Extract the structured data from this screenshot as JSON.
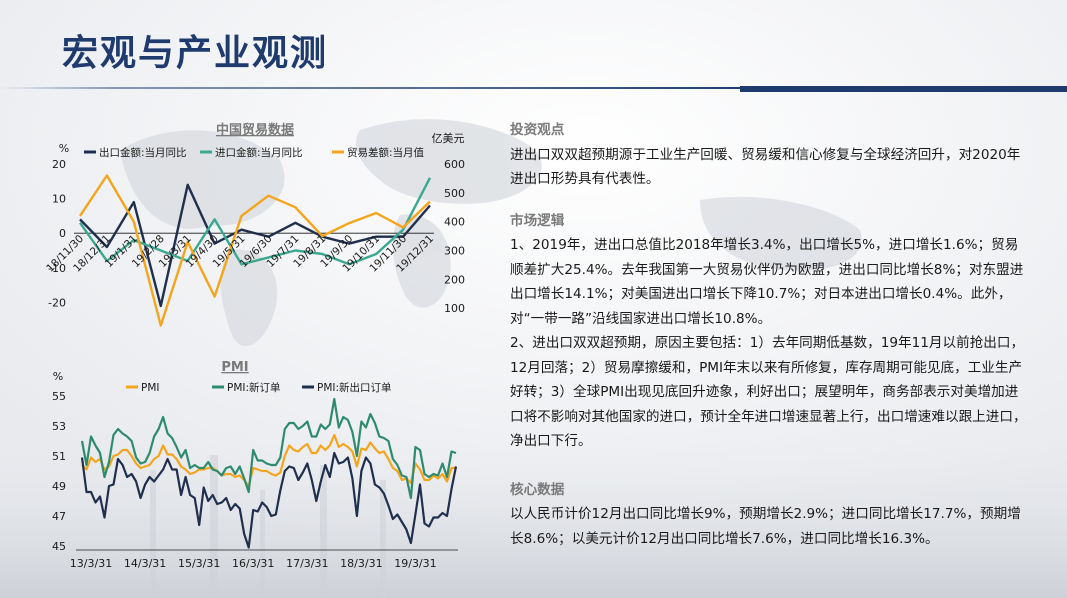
{
  "page": {
    "title": "宏观与产业观测"
  },
  "colors": {
    "title": "#1f3b6e",
    "navy": "#1f2f4d",
    "teal": "#3aa98f",
    "orange": "#f4a51c",
    "pmi_green": "#2e8b6e"
  },
  "text": {
    "invest_head": "投资观点",
    "invest_body": "进出口双双超预期源于工业生产回暖、贸易缓和信心修复与全球经济回升，对2020年进出口形势具有代表性。",
    "logic_head": "市场逻辑",
    "logic_p1": "1、2019年，进出口总值比2018年增长3.4%，出口增长5%，进口增长1.6%；贸易顺差扩大25.4%。去年我国第一大贸易伙伴仍为欧盟，进出口同比增长8%；对东盟进出口增长14.1%；对美国进出口增长下降10.7%；对日本进出口增长0.4%。此外，对“一带一路”沿线国家进出口增长10.8%。",
    "logic_p2": "2、进出口双双超预期，原因主要包括：1）去年同期低基数，19年11月以前抢出口，12月回落；2）贸易摩擦缓和，PMI年末以来有所修复，库存周期可能见底，工业生产好转；3）全球PMI出现见底回升迹象，利好出口；展望明年，商务部表示对美增加进口将不影响对其他国家的进口，预计全年进口增速显著上行，出口增速难以跟上进口，净出口下行。",
    "core_head": "核心数据",
    "core_body": "以人民币计价12月出口同比增长9%，预期增长2.9%；进口同比增长17.7%，预期增长8.6%；以美元计价12月出口同比增长7.6%，进口同比增长16.3%。"
  },
  "chart_data": [
    {
      "type": "line",
      "title": "中国贸易数据",
      "ylabel": "%",
      "ylabel_right": "亿美元",
      "ylim": [
        -30,
        20
      ],
      "ylim_right": [
        0,
        600
      ],
      "yticks": [
        20,
        10,
        0,
        -10,
        -20,
        -30
      ],
      "yticks_right": [
        600,
        500,
        400,
        300,
        200,
        100,
        0
      ],
      "x": [
        "18/11/30",
        "18/12/31",
        "19/1/31",
        "19/2/28",
        "19/3/31",
        "19/4/30",
        "19/5/31",
        "19/6/30",
        "19/7/31",
        "19/8/31",
        "19/9/30",
        "19/10/31",
        "19/11/30",
        "19/12/31"
      ],
      "grid": false,
      "legend": "top",
      "series": [
        {
          "name": "出口金额:当月同比",
          "axis": "left",
          "color": "#1f2f4d",
          "values": [
            4,
            -4,
            9,
            -21,
            14,
            -3,
            1,
            -1,
            3,
            -1,
            -3,
            -1,
            -1,
            8
          ]
        },
        {
          "name": "进口金额:当月同比",
          "axis": "left",
          "color": "#3aa98f",
          "values": [
            3,
            -8,
            -2,
            -5,
            -8,
            4,
            -9,
            -7,
            -5,
            -6,
            -9,
            -6,
            1,
            16
          ]
        },
        {
          "name": "贸易差额:当月值",
          "axis": "right",
          "color": "#f4a51c",
          "values": [
            420,
            560,
            400,
            40,
            330,
            140,
            420,
            490,
            450,
            350,
            395,
            430,
            380,
            470
          ]
        }
      ]
    },
    {
      "type": "line",
      "title": "PMI",
      "ylabel": "%",
      "ylim": [
        45,
        55
      ],
      "yticks": [
        55,
        53,
        51,
        49,
        47,
        45
      ],
      "xticks": [
        "13/3/31",
        "14/3/31",
        "15/3/31",
        "16/3/31",
        "17/3/31",
        "18/3/31",
        "19/3/31"
      ],
      "x_start": "2013-01",
      "x_end": "2019-12",
      "grid": false,
      "legend": "top",
      "series": [
        {
          "name": "PMI",
          "color": "#f4a51c",
          "values": [
            50.4,
            50.1,
            50.9,
            50.6,
            50.8,
            50.1,
            50.3,
            51.0,
            51.1,
            51.4,
            51.4,
            51.0,
            50.5,
            50.2,
            50.3,
            50.4,
            50.8,
            51.0,
            51.7,
            51.1,
            51.1,
            50.8,
            50.3,
            50.1,
            49.8,
            49.9,
            50.1,
            50.1,
            50.2,
            50.2,
            50.0,
            49.7,
            49.8,
            49.8,
            49.6,
            49.7,
            49.4,
            49.0,
            50.2,
            50.1,
            50.0,
            50.0,
            49.8,
            49.7,
            49.9,
            51.0,
            51.7,
            51.4,
            51.3,
            51.6,
            51.8,
            51.2,
            51.2,
            51.7,
            51.4,
            51.7,
            52.4,
            51.6,
            51.8,
            51.6,
            51.3,
            50.3,
            51.5,
            51.4,
            51.9,
            51.5,
            51.2,
            51.3,
            50.8,
            50.2,
            50.0,
            49.4,
            49.5,
            49.2,
            50.5,
            50.1,
            49.4,
            49.4,
            49.7,
            49.5,
            49.8,
            49.3,
            50.2,
            50.2
          ]
        },
        {
          "name": "PMI:新订单",
          "color": "#2e8b6e",
          "values": [
            52.0,
            50.4,
            52.3,
            51.7,
            51.2,
            49.6,
            50.6,
            52.4,
            52.8,
            52.5,
            52.3,
            52.0,
            50.9,
            50.5,
            50.6,
            51.2,
            52.3,
            52.8,
            53.6,
            52.5,
            52.2,
            51.6,
            50.9,
            51.4,
            50.2,
            50.4,
            50.2,
            50.2,
            50.6,
            50.1,
            50.0,
            49.7,
            50.2,
            50.3,
            49.8,
            50.3,
            49.5,
            48.6,
            51.4,
            50.7,
            50.7,
            50.5,
            50.4,
            50.4,
            50.9,
            52.8,
            53.2,
            53.2,
            52.8,
            53.0,
            53.3,
            52.3,
            52.3,
            53.1,
            52.8,
            53.1,
            54.8,
            52.9,
            53.6,
            53.4,
            52.6,
            51.0,
            53.3,
            52.9,
            53.8,
            53.2,
            52.3,
            52.2,
            52.0,
            50.8,
            50.4,
            49.7,
            49.6,
            48.2,
            51.6,
            51.4,
            49.8,
            49.6,
            49.8,
            49.7,
            50.5,
            49.6,
            51.3,
            51.2
          ]
        },
        {
          "name": "PMI:新出口订单",
          "color": "#1f2f4d",
          "values": [
            50.9,
            48.6,
            48.6,
            47.9,
            48.3,
            46.9,
            49.0,
            49.1,
            50.8,
            50.4,
            49.6,
            49.8,
            49.3,
            48.2,
            49.1,
            49.6,
            49.3,
            49.7,
            50.1,
            50.8,
            50.1,
            50.1,
            48.4,
            49.6,
            48.4,
            48.2,
            46.4,
            48.9,
            48.0,
            48.4,
            47.8,
            47.9,
            48.2,
            47.4,
            47.8,
            47.5,
            45.8,
            44.9,
            47.4,
            47.3,
            47.9,
            47.6,
            47.0,
            47.1,
            48.7,
            50.0,
            50.3,
            50.2,
            49.4,
            49.9,
            50.5,
            49.4,
            48.0,
            49.3,
            50.4,
            49.6,
            51.2,
            50.5,
            50.6,
            50.9,
            49.5,
            47.0,
            50.0,
            50.9,
            50.5,
            49.1,
            48.9,
            48.5,
            47.7,
            46.8,
            47.1,
            46.6,
            46.1,
            45.2,
            47.1,
            49.1,
            46.5,
            46.3,
            46.9,
            46.9,
            47.2,
            47.0,
            48.8,
            50.3
          ]
        }
      ]
    }
  ]
}
